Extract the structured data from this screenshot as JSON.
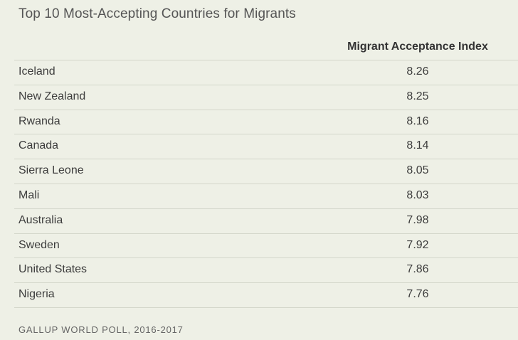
{
  "chart_data": {
    "type": "table",
    "title": "Top 10 Most-Accepting Countries for Migrants",
    "columns": [
      "",
      "Migrant Acceptance Index"
    ],
    "categories": [
      "Iceland",
      "New Zealand",
      "Rwanda",
      "Canada",
      "Sierra Leone",
      "Mali",
      "Australia",
      "Sweden",
      "United States",
      "Nigeria"
    ],
    "values": [
      "8.26",
      "8.25",
      "8.16",
      "8.14",
      "8.05",
      "8.03",
      "7.98",
      "7.92",
      "7.86",
      "7.76"
    ],
    "source": "GALLUP WORLD POLL, 2016-2017"
  }
}
